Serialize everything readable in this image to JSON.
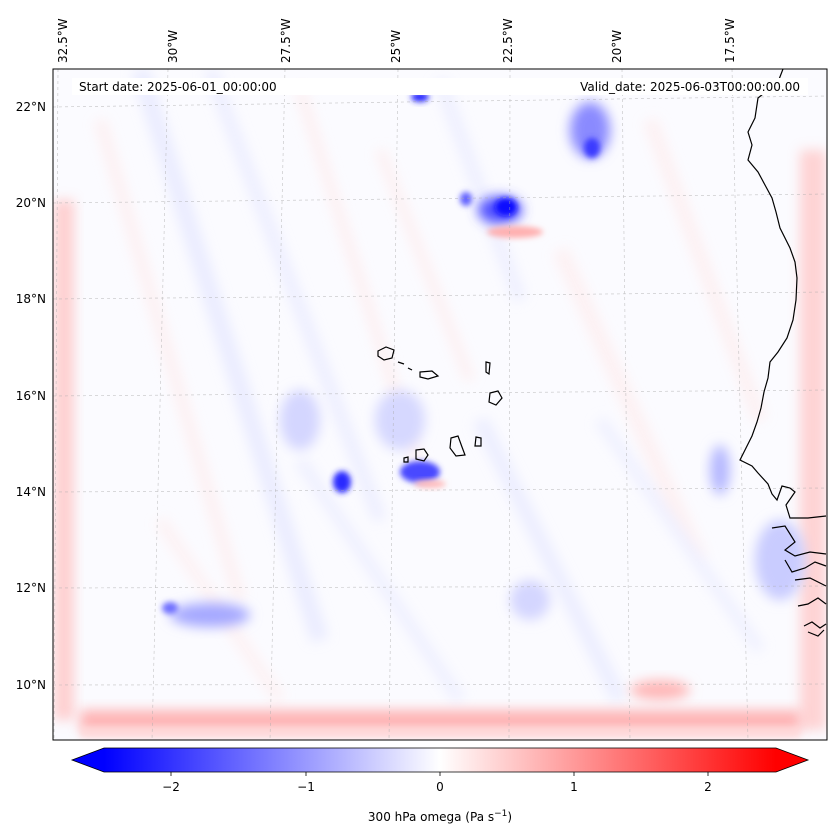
{
  "map": {
    "start_date": "Start date: 2025-06-01_00:00:00",
    "valid_date": "Valid_date: 2025-06-03T00:00:00.00",
    "lon_labels": [
      "32.5°W",
      "30°W",
      "27.5°W",
      "25°W",
      "22.5°W",
      "20°W",
      "17.5°W"
    ],
    "lat_labels": [
      "22°N",
      "20°N",
      "18°N",
      "16°N",
      "14°N",
      "12°N",
      "10°N"
    ],
    "colorbar": {
      "ticks": [
        "−2",
        "−1",
        "0",
        "1",
        "2"
      ],
      "label_main": "300 hPa omega (Pa s",
      "label_sup": "−1",
      "label_end": ")",
      "colors": {
        "low": "#0000ff",
        "mid": "#ffffff",
        "high": "#ff0000"
      }
    }
  }
}
